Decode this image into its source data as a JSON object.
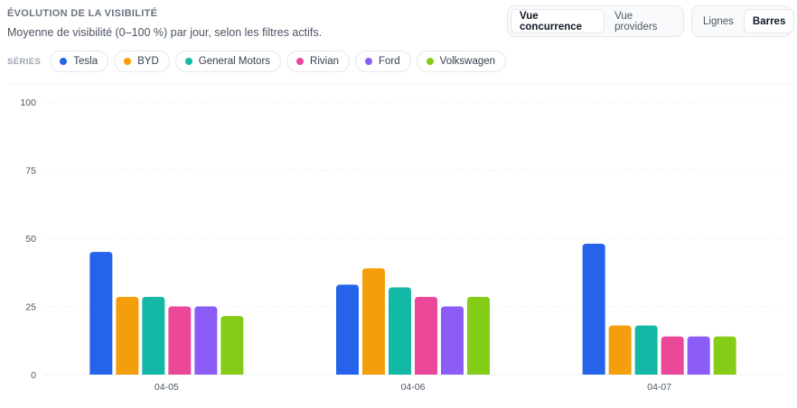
{
  "header": {
    "title": "ÉVOLUTION DE LA VISIBILITÉ",
    "subtitle": "Moyenne de visibilité (0–100 %) par jour, selon les filtres actifs."
  },
  "view_toggle": {
    "options": [
      "Vue concurrence",
      "Vue providers"
    ],
    "selected": "Vue concurrence"
  },
  "type_toggle": {
    "options": [
      "Lignes",
      "Barres"
    ],
    "selected": "Barres"
  },
  "legend": {
    "label": "SÉRIES",
    "items": [
      {
        "name": "Tesla",
        "color": "#2563eb"
      },
      {
        "name": "BYD",
        "color": "#f59e0b"
      },
      {
        "name": "General Motors",
        "color": "#14b8a6"
      },
      {
        "name": "Rivian",
        "color": "#ec4899"
      },
      {
        "name": "Ford",
        "color": "#8b5cf6"
      },
      {
        "name": "Volkswagen",
        "color": "#84cc16"
      }
    ]
  },
  "chart_data": {
    "type": "bar",
    "categories": [
      "04-05",
      "04-06",
      "04-07"
    ],
    "series": [
      {
        "name": "Tesla",
        "color": "#2563eb",
        "values": [
          45,
          33,
          48
        ]
      },
      {
        "name": "BYD",
        "color": "#f59e0b",
        "values": [
          28.5,
          39,
          18
        ]
      },
      {
        "name": "General Motors",
        "color": "#14b8a6",
        "values": [
          28.5,
          32,
          18
        ]
      },
      {
        "name": "Rivian",
        "color": "#ec4899",
        "values": [
          25,
          28.5,
          14
        ]
      },
      {
        "name": "Ford",
        "color": "#8b5cf6",
        "values": [
          25,
          25,
          14
        ]
      },
      {
        "name": "Volkswagen",
        "color": "#84cc16",
        "values": [
          21.5,
          28.5,
          14
        ]
      }
    ],
    "yticks": [
      0,
      25,
      50,
      75,
      100
    ],
    "ylim": [
      0,
      100
    ],
    "grid": true
  }
}
